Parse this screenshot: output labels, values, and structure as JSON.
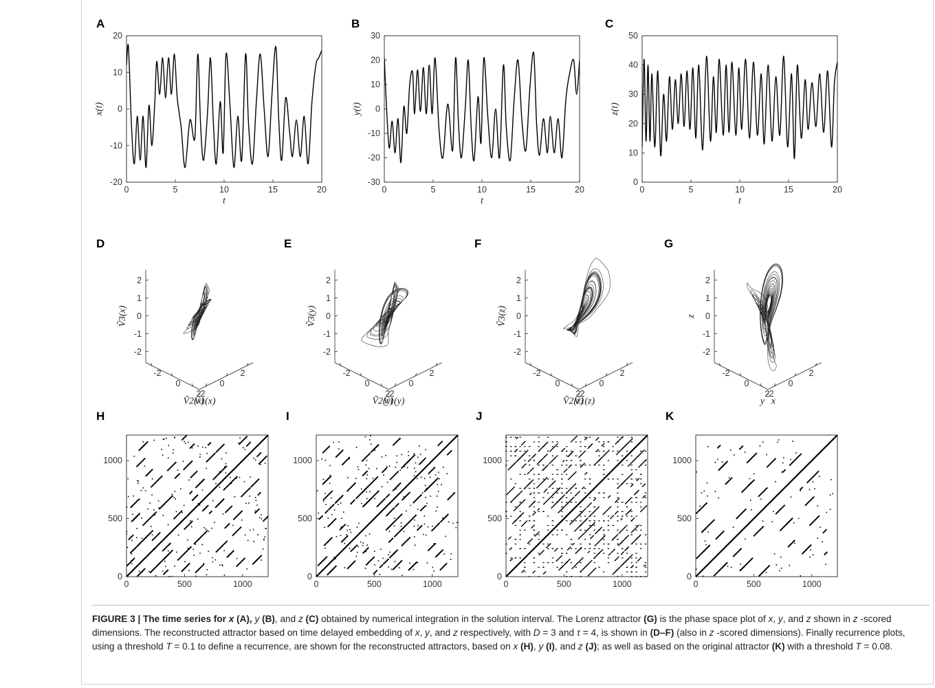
{
  "figure": {
    "caption_label": "FIGURE 3 |",
    "caption_bold_sentence": "The time series for x (A), y (B), and z (C)",
    "caption_segments": [
      {
        "t": "FIGURE 3 | The time series for ",
        "b": true
      },
      {
        "t": "x",
        "b": true,
        "i": true
      },
      {
        "t": " (A), ",
        "b": true
      },
      {
        "t": "y",
        "b": false,
        "i": true
      },
      {
        "t": " (B)",
        "b": true
      },
      {
        "t": ", and ",
        "b": false
      },
      {
        "t": "z",
        "b": false,
        "i": true
      },
      {
        "t": " (C)",
        "b": true
      },
      {
        "t": " obtained by numerical integration in the solution interval. The Lorenz attractor ",
        "b": false
      },
      {
        "t": "(G)",
        "b": true
      },
      {
        "t": " is the phase space plot of ",
        "b": false
      },
      {
        "t": "x",
        "b": false,
        "i": true
      },
      {
        "t": ", ",
        "b": false
      },
      {
        "t": "y",
        "b": false,
        "i": true
      },
      {
        "t": ", and ",
        "b": false
      },
      {
        "t": "z",
        "b": false,
        "i": true
      },
      {
        "t": " shown in ",
        "b": false
      },
      {
        "t": "z",
        "b": false,
        "i": true
      },
      {
        "t": " -scored dimensions. The reconstructed attractor based on time delayed embedding of ",
        "b": false
      },
      {
        "t": "x",
        "b": false,
        "i": true
      },
      {
        "t": ", ",
        "b": false
      },
      {
        "t": "y",
        "b": false,
        "i": true
      },
      {
        "t": ", and ",
        "b": false
      },
      {
        "t": "z",
        "b": false,
        "i": true
      },
      {
        "t": " respectively, with ",
        "b": false
      },
      {
        "t": "D",
        "b": false,
        "i": true
      },
      {
        "t": " = 3 and ",
        "b": false
      },
      {
        "t": "τ",
        "b": false,
        "i": true
      },
      {
        "t": " = 4, is shown in ",
        "b": false
      },
      {
        "t": "(D–F)",
        "b": true
      },
      {
        "t": " (also in ",
        "b": false
      },
      {
        "t": "z",
        "b": false,
        "i": true
      },
      {
        "t": " -scored dimensions). Finally recurrence plots, using a threshold ",
        "b": false
      },
      {
        "t": "T",
        "b": false,
        "i": true
      },
      {
        "t": " = 0.1 to define a recurrence, are shown for the reconstructed attractors, based on ",
        "b": false
      },
      {
        "t": "x",
        "b": false,
        "i": true
      },
      {
        "t": " ",
        "b": false
      },
      {
        "t": "(H)",
        "b": true
      },
      {
        "t": ", ",
        "b": false
      },
      {
        "t": "y",
        "b": false,
        "i": true
      },
      {
        "t": " ",
        "b": false
      },
      {
        "t": "(I)",
        "b": true
      },
      {
        "t": ", and ",
        "b": false
      },
      {
        "t": "z",
        "b": false,
        "i": true
      },
      {
        "t": " ",
        "b": false
      },
      {
        "t": "(J)",
        "b": true
      },
      {
        "t": "; as well as based on the original attractor ",
        "b": false
      },
      {
        "t": "(K)",
        "b": true
      },
      {
        "t": " with a threshold ",
        "b": false
      },
      {
        "t": "T",
        "b": false,
        "i": true
      },
      {
        "t": " = 0.08.",
        "b": false
      }
    ]
  },
  "chart_data": [
    {
      "panel": "A",
      "type": "line",
      "xlabel": "t",
      "ylabel": "x(t)",
      "xlim": [
        0,
        20
      ],
      "ylim": [
        -20,
        20
      ],
      "xticks": [
        "0",
        "5",
        "10",
        "15",
        "20"
      ],
      "yticks": [
        "-20",
        "-10",
        "0",
        "10",
        "20"
      ],
      "x": [
        0,
        0.2,
        0.5,
        0.8,
        1.1,
        1.4,
        1.7,
        2.0,
        2.3,
        2.6,
        2.9,
        3.1,
        3.4,
        3.7,
        4.0,
        4.3,
        4.6,
        4.9,
        5.2,
        5.6,
        6.0,
        6.5,
        7.0,
        7.3,
        7.6,
        7.9,
        8.3,
        8.6,
        8.9,
        9.2,
        9.6,
        9.9,
        10.2,
        10.6,
        11.0,
        11.4,
        11.8,
        12.2,
        12.5,
        12.9,
        13.3,
        13.7,
        14.1,
        14.5,
        14.9,
        15.3,
        15.6,
        15.9,
        16.3,
        16.7,
        17.0,
        17.4,
        17.8,
        18.2,
        18.6,
        19.0,
        19.4,
        19.7,
        20.0
      ],
      "values": [
        12,
        17,
        -4,
        -15,
        -2,
        -14,
        -2,
        -16,
        1,
        -10,
        2,
        13,
        4,
        14,
        3,
        14,
        4,
        15,
        3,
        -5,
        -16,
        -3,
        -8,
        15,
        -5,
        -14,
        -1,
        14,
        -4,
        -15,
        2,
        -12,
        15,
        1,
        -16,
        -2,
        -14,
        15,
        -4,
        -15,
        2,
        15,
        0,
        -13,
        4,
        17,
        -3,
        -14,
        3,
        -6,
        -13,
        -3,
        -13,
        -2,
        -15,
        2,
        12,
        14,
        16
      ]
    },
    {
      "panel": "B",
      "type": "line",
      "xlabel": "t",
      "ylabel": "y(t)",
      "xlim": [
        0,
        20
      ],
      "ylim": [
        -30,
        30
      ],
      "xticks": [
        "0",
        "5",
        "10",
        "15",
        "20"
      ],
      "yticks": [
        "-30",
        "-20",
        "-10",
        "0",
        "10",
        "20",
        "30"
      ],
      "x": [
        0,
        0.2,
        0.5,
        0.8,
        1.1,
        1.4,
        1.7,
        2.0,
        2.3,
        2.6,
        2.9,
        3.1,
        3.4,
        3.7,
        4.0,
        4.3,
        4.6,
        4.9,
        5.2,
        5.6,
        6.0,
        6.5,
        7.0,
        7.3,
        7.6,
        7.9,
        8.3,
        8.6,
        8.9,
        9.2,
        9.6,
        9.9,
        10.2,
        10.6,
        11.0,
        11.4,
        11.8,
        12.2,
        12.5,
        12.9,
        13.3,
        13.7,
        14.1,
        14.5,
        14.9,
        15.3,
        15.6,
        15.9,
        16.3,
        16.7,
        17.0,
        17.4,
        17.8,
        18.2,
        18.6,
        19.0,
        19.4,
        19.7,
        20.0
      ],
      "values": [
        21,
        3,
        -16,
        -5,
        -18,
        -4,
        -22,
        1,
        -10,
        10,
        15,
        -2,
        16,
        -1,
        17,
        -2,
        18,
        -2,
        21,
        -8,
        -20,
        2,
        -17,
        21,
        -6,
        -20,
        1,
        20,
        -8,
        -21,
        5,
        -14,
        21,
        -3,
        -20,
        0,
        -20,
        18,
        -8,
        -21,
        4,
        20,
        -5,
        -17,
        8,
        23,
        -6,
        -19,
        -4,
        -18,
        -3,
        -18,
        -4,
        -20,
        4,
        15,
        20,
        6,
        20
      ]
    },
    {
      "panel": "C",
      "type": "line",
      "xlabel": "t",
      "ylabel": "z(t)",
      "xlim": [
        0,
        20
      ],
      "ylim": [
        0,
        50
      ],
      "xticks": [
        "0",
        "5",
        "10",
        "15",
        "20"
      ],
      "yticks": [
        "0",
        "10",
        "20",
        "30",
        "40",
        "50"
      ],
      "x": [
        0,
        0.2,
        0.4,
        0.6,
        0.8,
        1.0,
        1.3,
        1.6,
        1.9,
        2.2,
        2.5,
        2.8,
        3.1,
        3.4,
        3.7,
        4.0,
        4.3,
        4.6,
        4.9,
        5.2,
        5.5,
        5.8,
        6.2,
        6.6,
        7.0,
        7.3,
        7.6,
        7.9,
        8.3,
        8.6,
        8.9,
        9.2,
        9.6,
        9.9,
        10.2,
        10.6,
        11.0,
        11.4,
        11.8,
        12.2,
        12.5,
        12.9,
        13.3,
        13.7,
        14.1,
        14.5,
        14.9,
        15.3,
        15.6,
        15.9,
        16.3,
        16.7,
        17.0,
        17.4,
        17.8,
        18.2,
        18.6,
        19.0,
        19.4,
        19.7,
        20.0
      ],
      "values": [
        12,
        42,
        14,
        40,
        14,
        37,
        12,
        38,
        9,
        30,
        14,
        36,
        18,
        35,
        20,
        37,
        19,
        38,
        18,
        39,
        15,
        40,
        11,
        43,
        14,
        36,
        17,
        42,
        16,
        40,
        17,
        41,
        16,
        39,
        18,
        42,
        15,
        41,
        16,
        37,
        13,
        40,
        14,
        36,
        16,
        43,
        12,
        37,
        8,
        40,
        15,
        35,
        18,
        34,
        19,
        37,
        17,
        38,
        12,
        34,
        41
      ]
    },
    {
      "panel": "D",
      "type": "scatter",
      "kind": "3d-attractor",
      "zlabel": "Ṽ3(x)",
      "xlabel": "Ṽ1(x)",
      "ylabel": "Ṽ2(x)",
      "zticks": [
        "2",
        "1",
        "0",
        "-1",
        "-2"
      ],
      "xticks": [
        "-2",
        "0",
        "2"
      ],
      "yticks": [
        "-2",
        "0",
        "2"
      ]
    },
    {
      "panel": "E",
      "type": "scatter",
      "kind": "3d-attractor",
      "zlabel": "Ṽ3(y)",
      "xlabel": "Ṽ1(y)",
      "ylabel": "Ṽ2(y)",
      "zticks": [
        "2",
        "1",
        "0",
        "-1",
        "-2"
      ],
      "xticks": [
        "-2",
        "0",
        "2"
      ],
      "yticks": [
        "-2",
        "0",
        "2"
      ]
    },
    {
      "panel": "F",
      "type": "scatter",
      "kind": "3d-attractor",
      "zlabel": "Ṽ3(z)",
      "xlabel": "Ṽ1(z)",
      "ylabel": "Ṽ2(z)",
      "zticks": [
        "2",
        "1",
        "0",
        "-1",
        "-2"
      ],
      "xticks": [
        "-2",
        "0",
        "2"
      ],
      "yticks": [
        "-2",
        "0",
        "2"
      ]
    },
    {
      "panel": "G",
      "type": "scatter",
      "kind": "3d-attractor",
      "zlabel": "z",
      "xlabel": "x",
      "ylabel": "y",
      "zticks": [
        "2",
        "1",
        "0",
        "-1",
        "-2"
      ],
      "xticks": [
        "-2",
        "0",
        "2"
      ],
      "yticks": [
        "-2",
        "0",
        "2"
      ]
    },
    {
      "panel": "H",
      "type": "heatmap",
      "kind": "recurrence-plot",
      "xlim": [
        0,
        1220
      ],
      "ylim": [
        0,
        1220
      ],
      "xticks": [
        "0",
        "500",
        "1000"
      ],
      "yticks": [
        "0",
        "500",
        "1000"
      ],
      "diagonal_offsets": [
        -980,
        -860,
        -700,
        -560,
        -430,
        -300,
        -170,
        -90,
        90,
        170,
        300,
        430,
        560,
        700,
        860,
        980
      ]
    },
    {
      "panel": "I",
      "type": "heatmap",
      "kind": "recurrence-plot",
      "xlim": [
        0,
        1220
      ],
      "ylim": [
        0,
        1220
      ],
      "xticks": [
        "0",
        "500",
        "1000"
      ],
      "yticks": [
        "0",
        "500",
        "1000"
      ],
      "diagonal_offsets": [
        -1010,
        -860,
        -740,
        -600,
        -470,
        -330,
        -200,
        -80,
        80,
        200,
        330,
        470,
        600,
        740,
        860,
        1010
      ]
    },
    {
      "panel": "J",
      "type": "heatmap",
      "kind": "recurrence-plot",
      "xlim": [
        0,
        1220
      ],
      "ylim": [
        0,
        1220
      ],
      "xticks": [
        "0",
        "500",
        "1000"
      ],
      "yticks": [
        "0",
        "500",
        "1000"
      ],
      "diagonal_offsets": [
        -1100,
        -1000,
        -900,
        -800,
        -700,
        -600,
        -500,
        -400,
        -300,
        -200,
        -100,
        100,
        200,
        300,
        400,
        500,
        600,
        700,
        800,
        900,
        1000,
        1100
      ]
    },
    {
      "panel": "K",
      "type": "heatmap",
      "kind": "recurrence-plot",
      "xlim": [
        0,
        1220
      ],
      "ylim": [
        0,
        1220
      ],
      "xticks": [
        "0",
        "500",
        "1000"
      ],
      "yticks": [
        "0",
        "500",
        "1000"
      ],
      "diagonal_offsets": [
        -920,
        -720,
        -540,
        -330,
        -150,
        150,
        330,
        540,
        720,
        920
      ]
    }
  ]
}
